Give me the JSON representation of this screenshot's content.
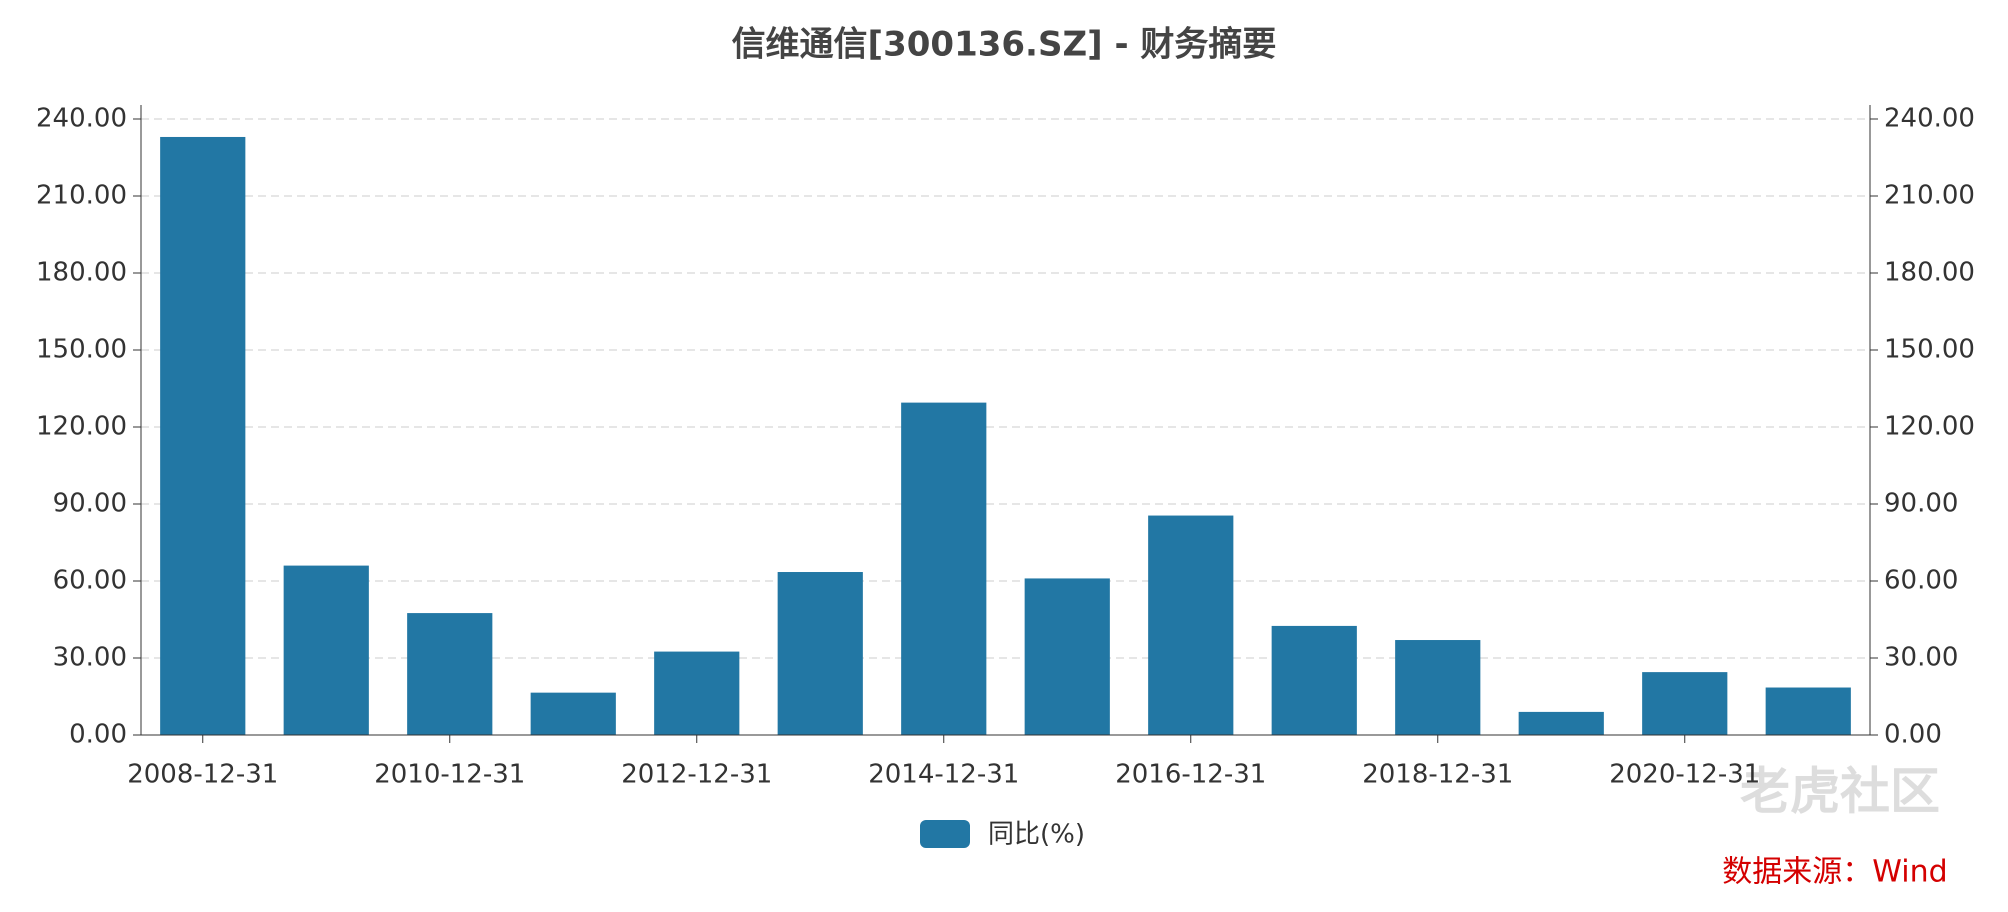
{
  "chart_data": {
    "type": "bar",
    "title": "信维通信[300136.SZ] - 财务摘要",
    "categories": [
      "2008-12-31",
      null,
      "2010-12-31",
      null,
      "2012-12-31",
      null,
      "2014-12-31",
      null,
      "2016-12-31",
      null,
      "2018-12-31",
      null,
      "2020-12-31",
      null
    ],
    "series": [
      {
        "name": "同比(%)",
        "color": "#2277a4",
        "values": [
          233,
          66,
          47.5,
          16.5,
          32.5,
          63.5,
          129.5,
          61,
          85.5,
          42.5,
          37,
          9,
          24.5,
          18.5
        ]
      }
    ],
    "ylim": [
      0,
      240
    ],
    "yticks": [
      {
        "value": 0,
        "label": "0.00"
      },
      {
        "value": 30,
        "label": "30.00"
      },
      {
        "value": 60,
        "label": "60.00"
      },
      {
        "value": 90,
        "label": "90.00"
      },
      {
        "value": 120,
        "label": "120.00"
      },
      {
        "value": 150,
        "label": "150.00"
      },
      {
        "value": 180,
        "label": "180.00"
      },
      {
        "value": 210,
        "label": "210.00"
      },
      {
        "value": 240,
        "label": "240.00"
      }
    ],
    "y2lim": [
      0,
      240
    ],
    "y2ticks": [
      {
        "value": 0,
        "label": "0.00"
      },
      {
        "value": 30,
        "label": "30.00"
      },
      {
        "value": 60,
        "label": "60.00"
      },
      {
        "value": 90,
        "label": "90.00"
      },
      {
        "value": 120,
        "label": "120.00"
      },
      {
        "value": 150,
        "label": "150.00"
      },
      {
        "value": 180,
        "label": "180.00"
      },
      {
        "value": 210,
        "label": "210.00"
      },
      {
        "value": 240,
        "label": "240.00"
      }
    ],
    "grid": true,
    "legend": "bottom",
    "watermark": "老虎社区",
    "source": "数据来源：Wind"
  }
}
